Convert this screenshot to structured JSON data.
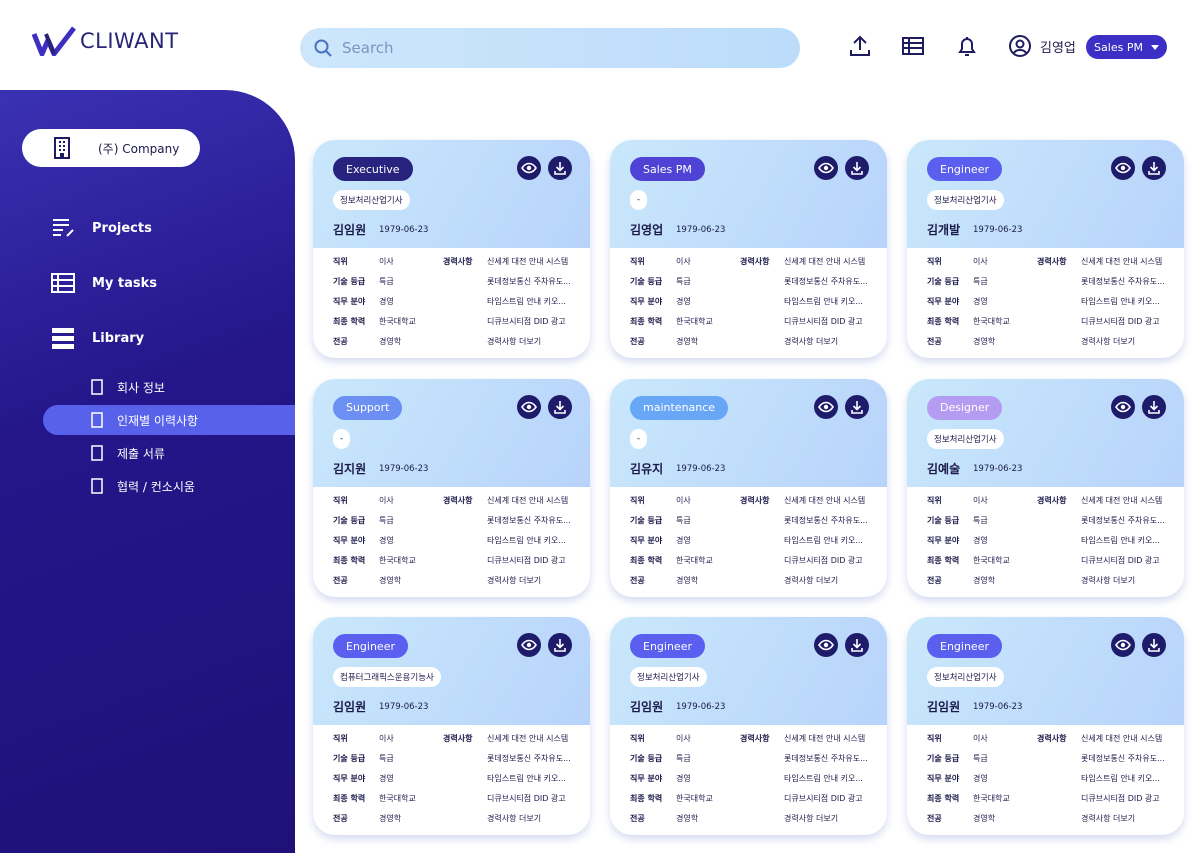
{
  "header": {
    "logo": "CLIWANT",
    "search_placeholder": "Search",
    "user_name": "김영업",
    "role": "Sales PM"
  },
  "sidebar": {
    "company": "(주) Company",
    "nav": [
      "Projects",
      "My tasks",
      "Library"
    ],
    "sub_nav": [
      "회사 정보",
      "인재별 이력사항",
      "제출 서류",
      "협력 / 컨소시움"
    ],
    "active_sub": 1
  },
  "cards": [
    {
      "role": "Executive",
      "badge_color": "#28237e",
      "cert": "정보처리산업기사",
      "name": "김임원",
      "birth": "1979-06-23"
    },
    {
      "role": "Sales PM",
      "badge_color": "#4f43d6",
      "cert": "-",
      "name": "김영업",
      "birth": "1979-06-23"
    },
    {
      "role": "Engineer",
      "badge_color": "#5a5ff0",
      "cert": "정보처리산업기사",
      "name": "김개발",
      "birth": "1979-06-23"
    },
    {
      "role": "Support",
      "badge_color": "#6b8ff2",
      "cert": "-",
      "name": "김지원",
      "birth": "1979-06-23"
    },
    {
      "role": "maintenance",
      "badge_color": "#68a6f6",
      "cert": "-",
      "name": "김유지",
      "birth": "1979-06-23"
    },
    {
      "role": "Designer",
      "badge_color": "#b49cf2",
      "cert": "정보처리산업기사",
      "name": "김예술",
      "birth": "1979-06-23"
    },
    {
      "role": "Engineer",
      "badge_color": "#5a5ff0",
      "cert": "컴퓨터그래픽스운용기능사",
      "name": "김임원",
      "birth": "1979-06-23"
    },
    {
      "role": "Engineer",
      "badge_color": "#5a5ff0",
      "cert": "정보처리산업기사",
      "name": "김임원",
      "birth": "1979-06-23"
    },
    {
      "role": "Engineer",
      "badge_color": "#5a5ff0",
      "cert": "정보처리산업기사",
      "name": "김임원",
      "birth": "1979-06-23"
    }
  ],
  "card_details": {
    "labels": [
      "직위",
      "기술 등급",
      "직무 분야",
      "최종 학력",
      "전공"
    ],
    "values": [
      "이사",
      "특급",
      "경영",
      "한국대학교",
      "경영학"
    ],
    "career_title": "경력사항",
    "career": [
      "신세계 대전 안내 시스템",
      "롯데정보통신 주차유도...",
      "타임스트림 안내 키오...",
      "디큐브시티점 DID 광고",
      "경력사항 더보기"
    ]
  }
}
